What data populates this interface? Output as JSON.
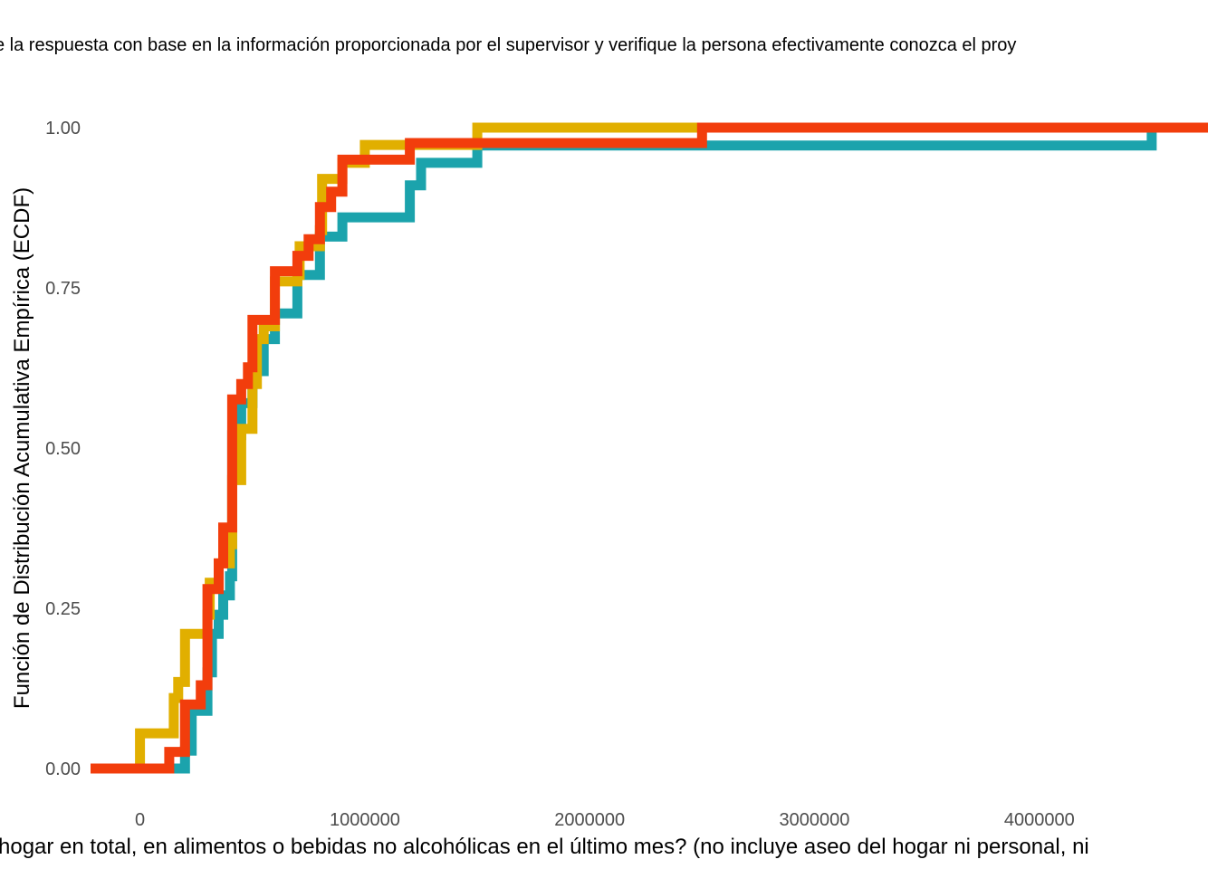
{
  "chart_data": {
    "type": "line",
    "subtitle": "e la respuesta con base en la información proporcionada por el supervisor y verifique la persona efectivamente conozca el proy",
    "xlabel": " hogar en total, en alimentos o bebidas no alcohólicas en el último mes? (no incluye aseo del hogar ni personal, ni",
    "ylabel": "Función de Distribución Acumulativa Empírica (ECDF)",
    "xlim": [
      -220000,
      4750000
    ],
    "ylim": [
      0,
      1
    ],
    "x_ticks": [
      {
        "value": 0,
        "label": "0"
      },
      {
        "value": 1000000,
        "label": "1000000"
      },
      {
        "value": 2000000,
        "label": "2000000"
      },
      {
        "value": 3000000,
        "label": "3000000"
      },
      {
        "value": 4000000,
        "label": "4000000"
      }
    ],
    "y_ticks": [
      {
        "value": 0,
        "label": "0.00"
      },
      {
        "value": 0.25,
        "label": "0.25"
      },
      {
        "value": 0.5,
        "label": "0.50"
      },
      {
        "value": 0.75,
        "label": "0.75"
      },
      {
        "value": 1,
        "label": "1.00"
      }
    ],
    "grid": false,
    "legend": "none",
    "step_series": [
      {
        "color": "#1BA3AC",
        "steps": [
          [
            200000,
            0.028
          ],
          [
            230000,
            0.09
          ],
          [
            300000,
            0.15
          ],
          [
            320000,
            0.21
          ],
          [
            350000,
            0.24
          ],
          [
            370000,
            0.27
          ],
          [
            400000,
            0.3
          ],
          [
            410000,
            0.52
          ],
          [
            450000,
            0.57
          ],
          [
            500000,
            0.62
          ],
          [
            550000,
            0.67
          ],
          [
            600000,
            0.71
          ],
          [
            700000,
            0.77
          ],
          [
            800000,
            0.83
          ],
          [
            900000,
            0.86
          ],
          [
            1200000,
            0.91
          ],
          [
            1250000,
            0.945
          ],
          [
            1500000,
            0.972
          ],
          [
            4500000,
            1.0
          ]
        ]
      },
      {
        "color": "#E1AF00",
        "steps": [
          [
            0,
            0.055
          ],
          [
            150000,
            0.11
          ],
          [
            170000,
            0.135
          ],
          [
            200000,
            0.21
          ],
          [
            300000,
            0.24
          ],
          [
            310000,
            0.29
          ],
          [
            350000,
            0.32
          ],
          [
            400000,
            0.35
          ],
          [
            410000,
            0.45
          ],
          [
            450000,
            0.53
          ],
          [
            500000,
            0.6
          ],
          [
            520000,
            0.67
          ],
          [
            550000,
            0.69
          ],
          [
            600000,
            0.76
          ],
          [
            700000,
            0.77
          ],
          [
            710000,
            0.815
          ],
          [
            800000,
            0.84
          ],
          [
            810000,
            0.92
          ],
          [
            900000,
            0.945
          ],
          [
            1000000,
            0.973
          ],
          [
            1500000,
            1.0
          ]
        ]
      },
      {
        "color": "#F23D0C",
        "steps": [
          [
            130000,
            0.026
          ],
          [
            200000,
            0.1
          ],
          [
            270000,
            0.13
          ],
          [
            300000,
            0.28
          ],
          [
            350000,
            0.32
          ],
          [
            370000,
            0.376
          ],
          [
            410000,
            0.576
          ],
          [
            450000,
            0.6
          ],
          [
            480000,
            0.626
          ],
          [
            500000,
            0.7
          ],
          [
            600000,
            0.776
          ],
          [
            700000,
            0.8
          ],
          [
            750000,
            0.826
          ],
          [
            800000,
            0.876
          ],
          [
            850000,
            0.9
          ],
          [
            900000,
            0.95
          ],
          [
            1200000,
            0.976
          ],
          [
            2500000,
            1.0
          ]
        ]
      }
    ]
  }
}
